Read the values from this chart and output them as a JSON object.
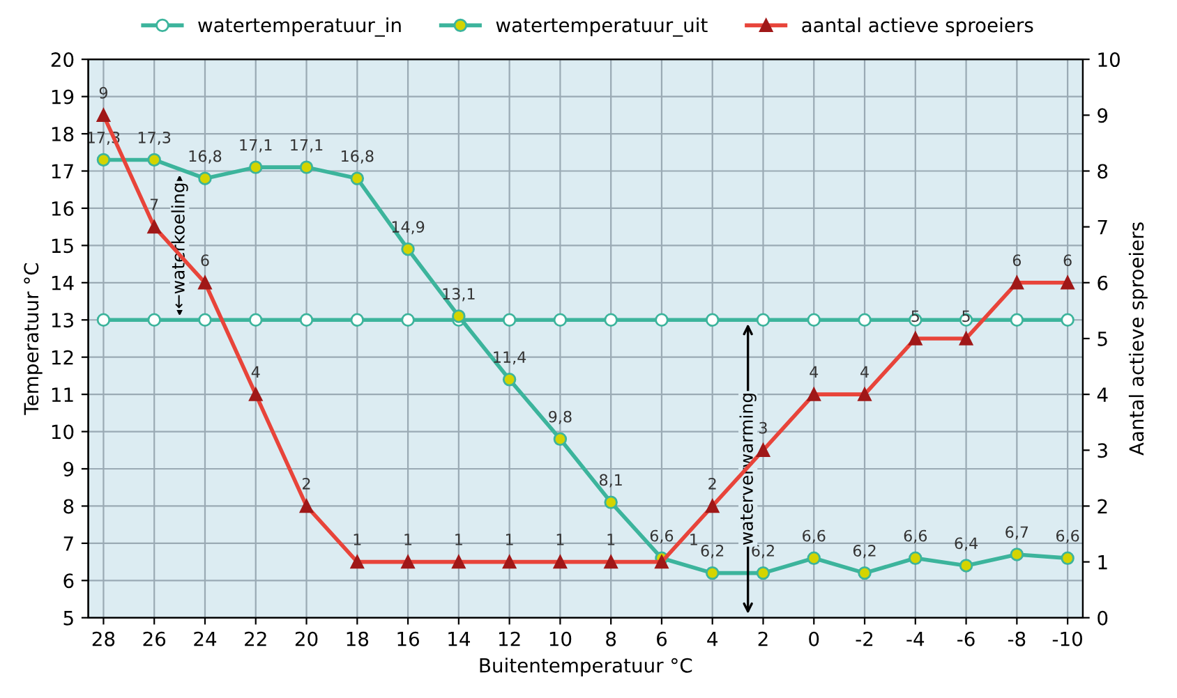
{
  "chart_data": {
    "type": "line",
    "xlabel": "Buitentemperatuur °C",
    "ylabel": "Temperatuur °C",
    "y2label": "Aantal actieve sproeiers",
    "categories": [
      "28",
      "26",
      "24",
      "22",
      "20",
      "18",
      "16",
      "14",
      "12",
      "10",
      "8",
      "6",
      "4",
      "2",
      "0",
      "-2",
      "-4",
      "-6",
      "-8",
      "-10"
    ],
    "series": [
      {
        "name": "watertemperatuur_in",
        "color": "#3cb49c",
        "marker": "circle",
        "values": [
          13,
          13,
          13,
          13,
          13,
          13,
          13,
          13,
          13,
          13,
          13,
          13,
          13,
          13,
          13,
          13,
          13,
          13,
          13,
          13
        ]
      },
      {
        "name": "watertemperatuur_uit",
        "color": "#3cb49c",
        "marker": "circle",
        "values": [
          17.3,
          17.3,
          16.8,
          17.1,
          17.1,
          16.8,
          14.9,
          13.1,
          11.4,
          9.8,
          8.1,
          6.6,
          6.2,
          6.2,
          6.6,
          6.2,
          6.6,
          6.4,
          6.7,
          6.6
        ],
        "value_labels": [
          "17,3",
          "17,3",
          "16,8",
          "17,1",
          "17,1",
          "16,8",
          "14,9",
          "13,1",
          "11,4",
          "9,8",
          "8,1",
          "6,6",
          "6,2",
          "6,2",
          "6,6",
          "6,2",
          "6,6",
          "6,4",
          "6,7",
          "6,6"
        ]
      },
      {
        "name": "aantal actieve sproeiers",
        "color": "#e8443a",
        "marker": "triangle",
        "axis": "y2",
        "values": [
          9,
          7,
          6,
          4,
          2,
          1,
          1,
          1,
          1,
          1,
          1,
          1,
          2,
          3,
          4,
          4,
          5,
          5,
          6,
          6
        ],
        "value_labels": [
          "9",
          "7",
          "6",
          "4",
          "2",
          "1",
          "1",
          "1",
          "1",
          "1",
          "1",
          "1",
          "2",
          "3",
          "4",
          "4",
          "5",
          "5",
          "6",
          "6"
        ]
      }
    ],
    "ylim": [
      5,
      20
    ],
    "yticks": [
      5,
      6,
      7,
      8,
      9,
      10,
      11,
      12,
      13,
      14,
      15,
      16,
      17,
      18,
      19,
      20
    ],
    "y2lim": [
      0,
      10
    ],
    "y2ticks": [
      0,
      1,
      2,
      3,
      4,
      5,
      6,
      7,
      8,
      9,
      10
    ],
    "annotations": [
      "←waterkoeling",
      "waterverwarming"
    ],
    "grid": true,
    "legend": "top",
    "line_style": "solid"
  }
}
